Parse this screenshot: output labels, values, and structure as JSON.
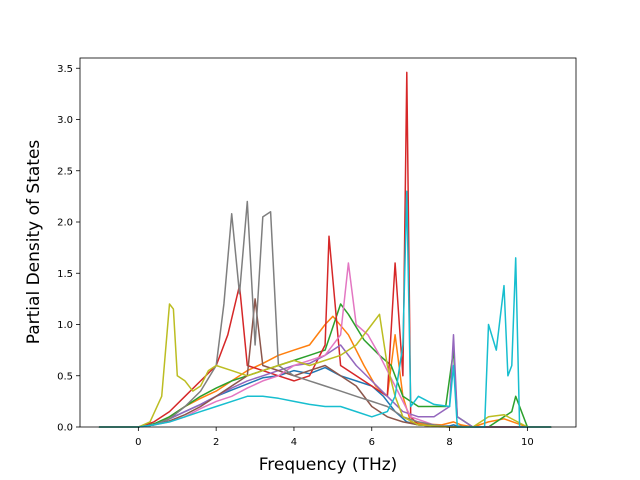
{
  "chart_data": {
    "type": "line",
    "title": "",
    "xlabel": "Frequency (THz)",
    "ylabel": "Partial Density of States",
    "xlim": [
      -1.5,
      11.25
    ],
    "ylim": [
      0,
      3.6
    ],
    "xticks": [
      0,
      2,
      4,
      6,
      8,
      10
    ],
    "yticks": [
      0.0,
      0.5,
      1.0,
      1.5,
      2.0,
      2.5,
      3.0,
      3.5
    ],
    "xtick_labels": [
      "0",
      "2",
      "4",
      "6",
      "8",
      "10"
    ],
    "ytick_labels": [
      "0.0",
      "0.5",
      "1.0",
      "1.5",
      "2.0",
      "2.5",
      "3.0",
      "3.5"
    ],
    "grid": false,
    "legend": "none",
    "series": [
      {
        "color": "#1f77b4",
        "x": [
          -1,
          0,
          0.4,
          0.8,
          1.2,
          1.6,
          2.0,
          2.4,
          2.8,
          3.2,
          3.6,
          4.0,
          4.4,
          4.8,
          5.2,
          5.6,
          6.0,
          6.3,
          6.6,
          6.9,
          7.2,
          7.6,
          8.0,
          8.1,
          8.2,
          8.6,
          9.0,
          9.4,
          9.7,
          10.0,
          10.6
        ],
        "y": [
          0,
          0,
          0.03,
          0.08,
          0.15,
          0.22,
          0.3,
          0.36,
          0.42,
          0.48,
          0.5,
          0.55,
          0.52,
          0.58,
          0.5,
          0.45,
          0.4,
          0.3,
          0.15,
          0.05,
          0.02,
          0.01,
          0.01,
          0.02,
          0.01,
          0,
          0,
          0,
          0,
          0,
          0
        ]
      },
      {
        "color": "#ff7f0e",
        "x": [
          -1,
          0,
          0.4,
          0.8,
          1.2,
          1.6,
          2.0,
          2.4,
          2.8,
          3.2,
          3.6,
          4.0,
          4.4,
          4.8,
          5.0,
          5.4,
          5.8,
          6.1,
          6.4,
          6.6,
          6.8,
          7.0,
          7.3,
          7.8,
          8.1,
          8.3,
          8.6,
          9.0,
          9.4,
          9.7,
          10.0,
          10.6
        ],
        "y": [
          0,
          0,
          0.02,
          0.1,
          0.2,
          0.28,
          0.35,
          0.45,
          0.55,
          0.62,
          0.7,
          0.75,
          0.8,
          1.0,
          1.08,
          0.9,
          0.6,
          0.4,
          0.3,
          0.9,
          0.3,
          0.05,
          0.03,
          0.02,
          0.05,
          0.02,
          0,
          0.05,
          0.08,
          0.04,
          0,
          0
        ]
      },
      {
        "color": "#2ca02c",
        "x": [
          -1,
          0,
          0.4,
          0.8,
          1.2,
          1.6,
          2.0,
          2.4,
          2.8,
          3.2,
          3.6,
          4.0,
          4.4,
          4.8,
          5.2,
          5.4,
          5.8,
          6.2,
          6.5,
          6.8,
          7.2,
          7.6,
          7.9,
          8.1,
          8.2,
          8.6,
          9.0,
          9.4,
          9.6,
          9.7,
          10.0,
          10.6
        ],
        "y": [
          0,
          0,
          0.03,
          0.1,
          0.2,
          0.3,
          0.38,
          0.45,
          0.5,
          0.55,
          0.6,
          0.65,
          0.7,
          0.75,
          1.2,
          1.1,
          0.85,
          0.7,
          0.6,
          0.3,
          0.2,
          0.2,
          0.2,
          0.75,
          0.1,
          0,
          0,
          0.1,
          0.15,
          0.3,
          0,
          0
        ]
      },
      {
        "color": "#d62728",
        "x": [
          -1,
          0,
          0.4,
          0.8,
          1.2,
          1.6,
          2.0,
          2.3,
          2.6,
          2.8,
          3.2,
          3.6,
          4.0,
          4.4,
          4.8,
          4.9,
          5.2,
          5.6,
          6.0,
          6.4,
          6.6,
          6.8,
          6.9,
          7.0,
          7.2,
          7.6,
          8.0,
          8.6,
          9.0,
          10.0,
          10.6
        ],
        "y": [
          0,
          0,
          0.05,
          0.15,
          0.3,
          0.45,
          0.6,
          0.9,
          1.38,
          0.6,
          0.55,
          0.5,
          0.45,
          0.5,
          0.8,
          1.86,
          0.6,
          0.5,
          0.4,
          0.3,
          1.6,
          0.5,
          3.46,
          0.1,
          0.02,
          0.01,
          0,
          0,
          0,
          0,
          0
        ]
      },
      {
        "color": "#9467bd",
        "x": [
          -1,
          0,
          0.4,
          0.8,
          1.2,
          1.6,
          2.0,
          2.4,
          2.8,
          3.2,
          3.6,
          4.0,
          4.4,
          4.8,
          5.2,
          5.6,
          6.0,
          6.4,
          6.8,
          7.2,
          7.6,
          8.0,
          8.1,
          8.2,
          8.6,
          9.0,
          10.0,
          10.6
        ],
        "y": [
          0,
          0,
          0.02,
          0.08,
          0.15,
          0.22,
          0.3,
          0.38,
          0.45,
          0.5,
          0.55,
          0.6,
          0.62,
          0.7,
          0.8,
          0.6,
          0.45,
          0.3,
          0.15,
          0.1,
          0.1,
          0.2,
          0.9,
          0.1,
          0,
          0,
          0,
          0
        ]
      },
      {
        "color": "#8c564b",
        "x": [
          -1,
          0,
          0.4,
          0.8,
          1.2,
          1.6,
          2.0,
          2.4,
          2.8,
          3.0,
          3.2,
          3.6,
          4.0,
          4.4,
          4.8,
          5.2,
          5.6,
          6.0,
          6.4,
          6.8,
          7.2,
          7.6,
          8.0,
          8.6,
          10.0,
          10.6
        ],
        "y": [
          0,
          0,
          0.02,
          0.06,
          0.12,
          0.2,
          0.3,
          0.4,
          0.5,
          1.25,
          0.6,
          0.55,
          0.5,
          0.55,
          0.6,
          0.5,
          0.4,
          0.2,
          0.1,
          0.05,
          0.02,
          0.01,
          0,
          0,
          0,
          0
        ]
      },
      {
        "color": "#e377c2",
        "x": [
          -1,
          0,
          0.4,
          0.8,
          1.2,
          1.6,
          2.0,
          2.4,
          2.8,
          3.2,
          3.6,
          4.0,
          4.4,
          4.8,
          5.2,
          5.4,
          5.6,
          5.9,
          6.2,
          6.6,
          7.0,
          7.6,
          8.0,
          8.6,
          10.0,
          10.6
        ],
        "y": [
          0,
          0,
          0.02,
          0.05,
          0.1,
          0.18,
          0.25,
          0.3,
          0.38,
          0.45,
          0.5,
          0.6,
          0.65,
          0.7,
          0.9,
          1.6,
          1.0,
          0.9,
          0.7,
          0.4,
          0.1,
          0.02,
          0,
          0,
          0,
          0
        ]
      },
      {
        "color": "#7f7f7f",
        "x": [
          -1,
          0,
          0.4,
          0.8,
          1.2,
          1.6,
          2.0,
          2.2,
          2.4,
          2.6,
          2.8,
          3.0,
          3.2,
          3.4,
          3.6,
          4.0,
          4.4,
          4.8,
          5.2,
          5.6,
          6.0,
          6.4,
          6.8,
          7.2,
          7.6,
          8.0,
          8.6,
          10.0,
          10.6
        ],
        "y": [
          0,
          0,
          0.02,
          0.08,
          0.2,
          0.35,
          0.6,
          1.2,
          2.08,
          1.3,
          2.2,
          0.8,
          2.05,
          2.1,
          0.6,
          0.5,
          0.45,
          0.4,
          0.35,
          0.3,
          0.25,
          0.2,
          0.1,
          0.05,
          0.02,
          0,
          0,
          0,
          0
        ]
      },
      {
        "color": "#bcbd22",
        "x": [
          -1,
          0,
          0.3,
          0.6,
          0.8,
          0.9,
          1.0,
          1.2,
          1.4,
          1.6,
          1.8,
          2.0,
          2.4,
          2.8,
          3.2,
          3.6,
          4.0,
          4.4,
          4.8,
          5.2,
          5.6,
          6.0,
          6.2,
          6.4,
          6.6,
          6.8,
          7.2,
          7.6,
          8.0,
          8.6,
          9.0,
          9.4,
          10.0,
          10.6
        ],
        "y": [
          0,
          0,
          0.05,
          0.3,
          1.2,
          1.15,
          0.5,
          0.45,
          0.35,
          0.4,
          0.55,
          0.6,
          0.55,
          0.5,
          0.55,
          0.6,
          0.65,
          0.6,
          0.65,
          0.7,
          0.8,
          1.0,
          1.1,
          0.6,
          0.3,
          0.1,
          0.02,
          0.01,
          0,
          0,
          0.1,
          0.12,
          0,
          0
        ]
      },
      {
        "color": "#17becf",
        "x": [
          -1,
          0,
          0.4,
          0.8,
          1.2,
          1.6,
          2.0,
          2.4,
          2.8,
          3.2,
          3.6,
          4.0,
          4.4,
          4.8,
          5.2,
          5.6,
          6.0,
          6.4,
          6.6,
          6.8,
          6.9,
          7.0,
          7.2,
          7.6,
          8.0,
          8.1,
          8.2,
          8.6,
          8.9,
          9.0,
          9.2,
          9.4,
          9.5,
          9.6,
          9.7,
          9.8,
          10.0,
          10.6
        ],
        "y": [
          0,
          0,
          0.02,
          0.05,
          0.1,
          0.15,
          0.2,
          0.25,
          0.3,
          0.3,
          0.28,
          0.25,
          0.22,
          0.2,
          0.2,
          0.15,
          0.1,
          0.15,
          0.3,
          0.8,
          2.3,
          0.2,
          0.3,
          0.22,
          0.2,
          0.6,
          0,
          0,
          0,
          1.0,
          0.75,
          1.38,
          0.5,
          0.6,
          1.65,
          0.0,
          0,
          0
        ]
      }
    ]
  }
}
